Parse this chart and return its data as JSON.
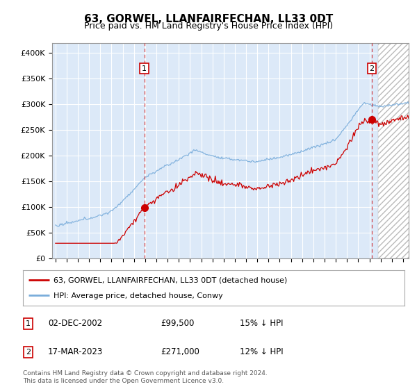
{
  "title": "63, GORWEL, LLANFAIRFECHAN, LL33 0DT",
  "subtitle": "Price paid vs. HM Land Registry's House Price Index (HPI)",
  "ylabel_ticks": [
    "£0",
    "£50K",
    "£100K",
    "£150K",
    "£200K",
    "£250K",
    "£300K",
    "£350K",
    "£400K"
  ],
  "ytick_values": [
    0,
    50000,
    100000,
    150000,
    200000,
    250000,
    300000,
    350000,
    400000
  ],
  "ylim": [
    0,
    420000
  ],
  "xlim_start": 1995.0,
  "xlim_end": 2026.5,
  "background_color": "#dce9f8",
  "hatch_color": "#aaaaaa",
  "grid_color": "#ffffff",
  "red_line_color": "#cc0000",
  "blue_line_color": "#7aaddb",
  "marker1_date": 2002.917,
  "marker1_value": 99500,
  "marker1_label": "1",
  "marker2_date": 2023.208,
  "marker2_value": 271000,
  "marker2_label": "2",
  "legend_red": "63, GORWEL, LLANFAIRFECHAN, LL33 0DT (detached house)",
  "legend_blue": "HPI: Average price, detached house, Conwy",
  "annotation1": [
    "1",
    "02-DEC-2002",
    "£99,500",
    "15% ↓ HPI"
  ],
  "annotation2": [
    "2",
    "17-MAR-2023",
    "£271,000",
    "12% ↓ HPI"
  ],
  "footer": [
    "Contains HM Land Registry data © Crown copyright and database right 2024.",
    "This data is licensed under the Open Government Licence v3.0."
  ],
  "x_tick_years": [
    1995,
    1996,
    1997,
    1998,
    1999,
    2000,
    2001,
    2002,
    2003,
    2004,
    2005,
    2006,
    2007,
    2008,
    2009,
    2010,
    2011,
    2012,
    2013,
    2014,
    2015,
    2016,
    2017,
    2018,
    2019,
    2020,
    2021,
    2022,
    2023,
    2024,
    2025,
    2026
  ]
}
